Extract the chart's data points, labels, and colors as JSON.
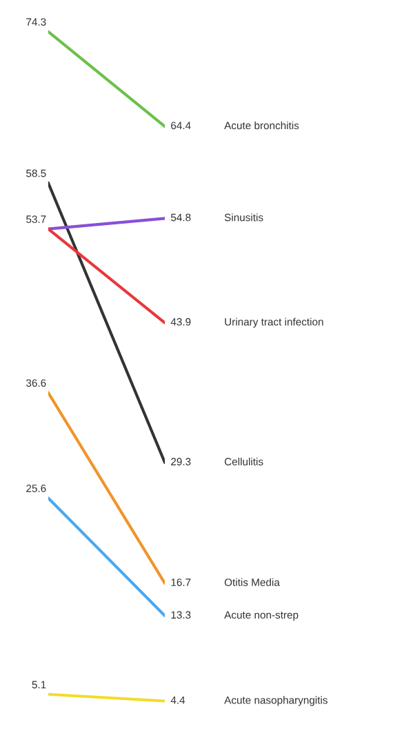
{
  "chart_data": {
    "type": "line",
    "categories": [
      null,
      null
    ],
    "legend": false,
    "marker": "none",
    "line_style": "solid",
    "series": [
      {
        "name": "Acute bronchitis",
        "color": "#6cc04a",
        "values": [
          74.3,
          64.4
        ],
        "value_labels": [
          "74.3",
          "64.4"
        ]
      },
      {
        "name": "Cellulitis",
        "color": "#333333",
        "values": [
          58.5,
          29.3
        ],
        "value_labels": [
          "58.5",
          "29.3"
        ]
      },
      {
        "name": "Sinusitis",
        "color": "#8a4fd8",
        "values": [
          53.7,
          54.8
        ],
        "value_labels": [
          "53.7",
          "54.8"
        ]
      },
      {
        "name": "Urinary tract infection",
        "color": "#e8383d",
        "values": [
          53.7,
          43.9
        ],
        "value_labels": [
          null,
          "43.9"
        ]
      },
      {
        "name": "Otitis Media",
        "color": "#f0952a",
        "values": [
          36.6,
          16.7
        ],
        "value_labels": [
          "36.6",
          "16.7"
        ]
      },
      {
        "name": "Acute non-strep",
        "color": "#4aa8f0",
        "values": [
          25.6,
          13.3
        ],
        "value_labels": [
          "25.6",
          "13.3"
        ]
      },
      {
        "name": "Acute nasopharyngitis",
        "color": "#f2dc2a",
        "values": [
          5.1,
          4.4
        ],
        "value_labels": [
          "5.1",
          "4.4"
        ]
      }
    ]
  }
}
